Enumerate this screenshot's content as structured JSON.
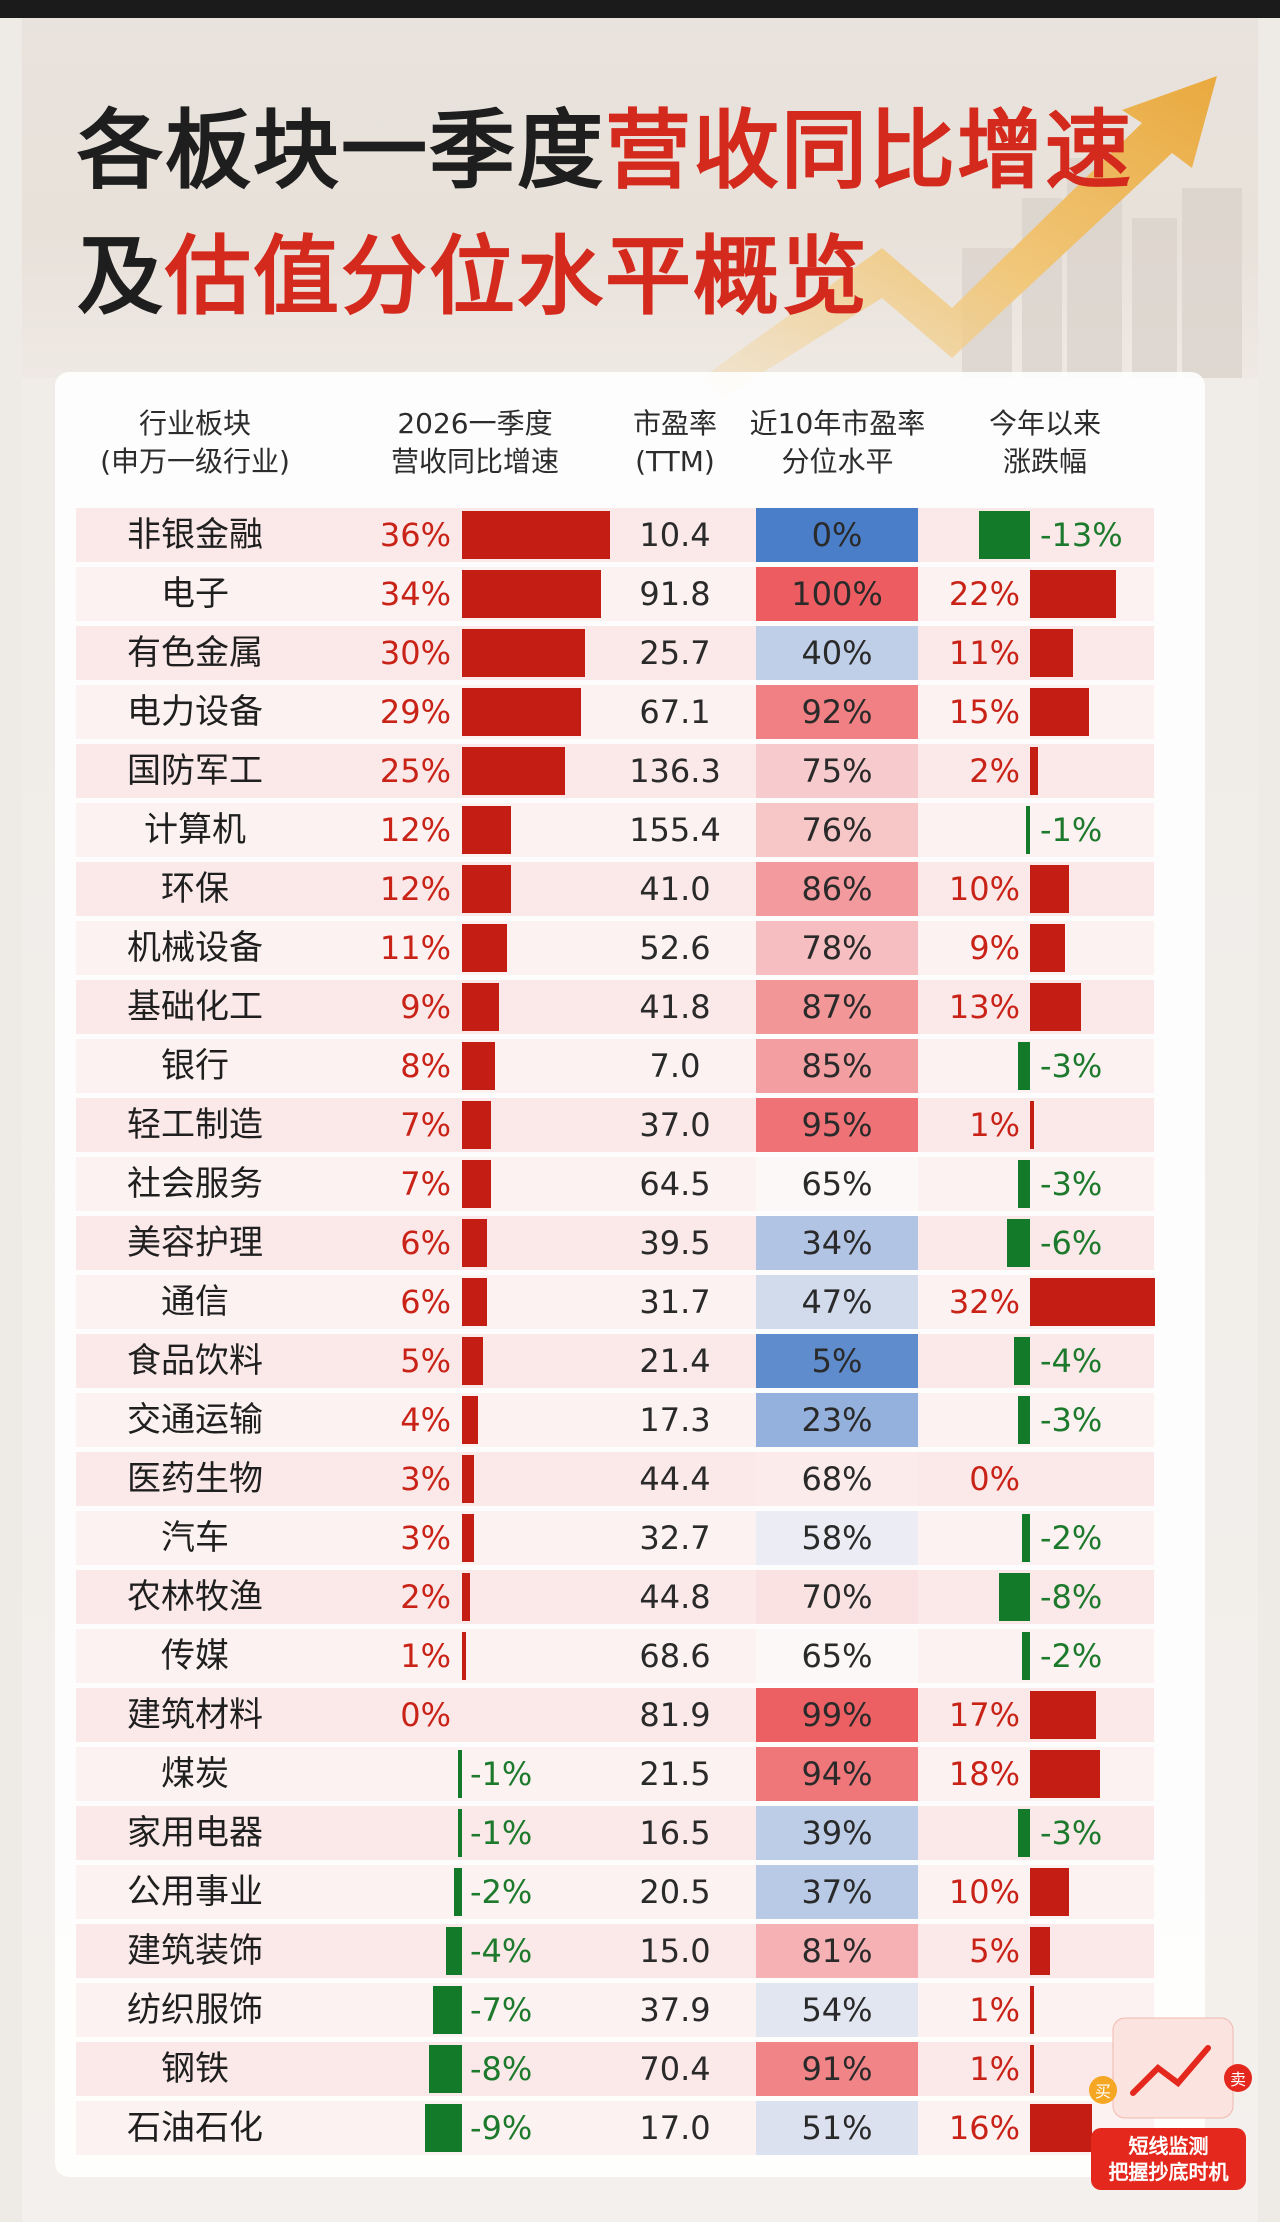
{
  "title": {
    "part1": "各板块一季度",
    "part2": "营收同比增速",
    "part3": "及",
    "part4": "估值分位水平概览"
  },
  "headers": {
    "sector_line1": "行业板块",
    "sector_line2": "(申万一级行业)",
    "rev_line1": "2026一季度",
    "rev_line2": "营收同比增速",
    "pe_line1": "市盈率",
    "pe_line2": "(TTM)",
    "pct_line1": "近10年市盈率",
    "pct_line2": "分位水平",
    "ytd_line1": "今年以来",
    "ytd_line2": "涨跌幅"
  },
  "badge": {
    "line1": "短线监测",
    "line2": "把握抄底时机",
    "buy": "买",
    "sell": "卖"
  },
  "colors": {
    "red": "#c31d14",
    "green": "#137a2a",
    "title_red": "#d42a1d"
  },
  "chart_data": {
    "type": "table",
    "columns": [
      "行业板块(申万一级行业)",
      "2026一季度营收同比增速",
      "市盈率(TTM)",
      "近10年市盈率分位水平",
      "今年以来涨跌幅"
    ],
    "rows": [
      {
        "sector": "非银金融",
        "rev": 36,
        "rev_label": "36%",
        "pe": "10.4",
        "pct": 0,
        "pct_label": "0%",
        "ytd": -13,
        "ytd_label": "-13%"
      },
      {
        "sector": "电子",
        "rev": 34,
        "rev_label": "34%",
        "pe": "91.8",
        "pct": 100,
        "pct_label": "100%",
        "ytd": 22,
        "ytd_label": "22%"
      },
      {
        "sector": "有色金属",
        "rev": 30,
        "rev_label": "30%",
        "pe": "25.7",
        "pct": 40,
        "pct_label": "40%",
        "ytd": 11,
        "ytd_label": "11%"
      },
      {
        "sector": "电力设备",
        "rev": 29,
        "rev_label": "29%",
        "pe": "67.1",
        "pct": 92,
        "pct_label": "92%",
        "ytd": 15,
        "ytd_label": "15%"
      },
      {
        "sector": "国防军工",
        "rev": 25,
        "rev_label": "25%",
        "pe": "136.3",
        "pct": 75,
        "pct_label": "75%",
        "ytd": 2,
        "ytd_label": "2%"
      },
      {
        "sector": "计算机",
        "rev": 12,
        "rev_label": "12%",
        "pe": "155.4",
        "pct": 76,
        "pct_label": "76%",
        "ytd": -1,
        "ytd_label": "-1%"
      },
      {
        "sector": "环保",
        "rev": 12,
        "rev_label": "12%",
        "pe": "41.0",
        "pct": 86,
        "pct_label": "86%",
        "ytd": 10,
        "ytd_label": "10%"
      },
      {
        "sector": "机械设备",
        "rev": 11,
        "rev_label": "11%",
        "pe": "52.6",
        "pct": 78,
        "pct_label": "78%",
        "ytd": 9,
        "ytd_label": "9%"
      },
      {
        "sector": "基础化工",
        "rev": 9,
        "rev_label": "9%",
        "pe": "41.8",
        "pct": 87,
        "pct_label": "87%",
        "ytd": 13,
        "ytd_label": "13%"
      },
      {
        "sector": "银行",
        "rev": 8,
        "rev_label": "8%",
        "pe": "7.0",
        "pct": 85,
        "pct_label": "85%",
        "ytd": -3,
        "ytd_label": "-3%"
      },
      {
        "sector": "轻工制造",
        "rev": 7,
        "rev_label": "7%",
        "pe": "37.0",
        "pct": 95,
        "pct_label": "95%",
        "ytd": 1,
        "ytd_label": "1%"
      },
      {
        "sector": "社会服务",
        "rev": 7,
        "rev_label": "7%",
        "pe": "64.5",
        "pct": 65,
        "pct_label": "65%",
        "ytd": -3,
        "ytd_label": "-3%"
      },
      {
        "sector": "美容护理",
        "rev": 6,
        "rev_label": "6%",
        "pe": "39.5",
        "pct": 34,
        "pct_label": "34%",
        "ytd": -6,
        "ytd_label": "-6%"
      },
      {
        "sector": "通信",
        "rev": 6,
        "rev_label": "6%",
        "pe": "31.7",
        "pct": 47,
        "pct_label": "47%",
        "ytd": 32,
        "ytd_label": "32%"
      },
      {
        "sector": "食品饮料",
        "rev": 5,
        "rev_label": "5%",
        "pe": "21.4",
        "pct": 5,
        "pct_label": "5%",
        "ytd": -4,
        "ytd_label": "-4%"
      },
      {
        "sector": "交通运输",
        "rev": 4,
        "rev_label": "4%",
        "pe": "17.3",
        "pct": 23,
        "pct_label": "23%",
        "ytd": -3,
        "ytd_label": "-3%"
      },
      {
        "sector": "医药生物",
        "rev": 3,
        "rev_label": "3%",
        "pe": "44.4",
        "pct": 68,
        "pct_label": "68%",
        "ytd": 0,
        "ytd_label": "0%"
      },
      {
        "sector": "汽车",
        "rev": 3,
        "rev_label": "3%",
        "pe": "32.7",
        "pct": 58,
        "pct_label": "58%",
        "ytd": -2,
        "ytd_label": "-2%"
      },
      {
        "sector": "农林牧渔",
        "rev": 2,
        "rev_label": "2%",
        "pe": "44.8",
        "pct": 70,
        "pct_label": "70%",
        "ytd": -8,
        "ytd_label": "-8%"
      },
      {
        "sector": "传媒",
        "rev": 1,
        "rev_label": "1%",
        "pe": "68.6",
        "pct": 65,
        "pct_label": "65%",
        "ytd": -2,
        "ytd_label": "-2%"
      },
      {
        "sector": "建筑材料",
        "rev": 0,
        "rev_label": "0%",
        "pe": "81.9",
        "pct": 99,
        "pct_label": "99%",
        "ytd": 17,
        "ytd_label": "17%"
      },
      {
        "sector": "煤炭",
        "rev": -1,
        "rev_label": "-1%",
        "pe": "21.5",
        "pct": 94,
        "pct_label": "94%",
        "ytd": 18,
        "ytd_label": "18%"
      },
      {
        "sector": "家用电器",
        "rev": -1,
        "rev_label": "-1%",
        "pe": "16.5",
        "pct": 39,
        "pct_label": "39%",
        "ytd": -3,
        "ytd_label": "-3%"
      },
      {
        "sector": "公用事业",
        "rev": -2,
        "rev_label": "-2%",
        "pe": "20.5",
        "pct": 37,
        "pct_label": "37%",
        "ytd": 10,
        "ytd_label": "10%"
      },
      {
        "sector": "建筑装饰",
        "rev": -4,
        "rev_label": "-4%",
        "pe": "15.0",
        "pct": 81,
        "pct_label": "81%",
        "ytd": 5,
        "ytd_label": "5%"
      },
      {
        "sector": "纺织服饰",
        "rev": -7,
        "rev_label": "-7%",
        "pe": "37.9",
        "pct": 54,
        "pct_label": "54%",
        "ytd": 1,
        "ytd_label": "1%"
      },
      {
        "sector": "钢铁",
        "rev": -8,
        "rev_label": "-8%",
        "pe": "70.4",
        "pct": 91,
        "pct_label": "91%",
        "ytd": 1,
        "ytd_label": "1%"
      },
      {
        "sector": "石油石化",
        "rev": -9,
        "rev_label": "-9%",
        "pe": "17.0",
        "pct": 51,
        "pct_label": "51%",
        "ytd": 16,
        "ytd_label": "16%"
      }
    ]
  }
}
